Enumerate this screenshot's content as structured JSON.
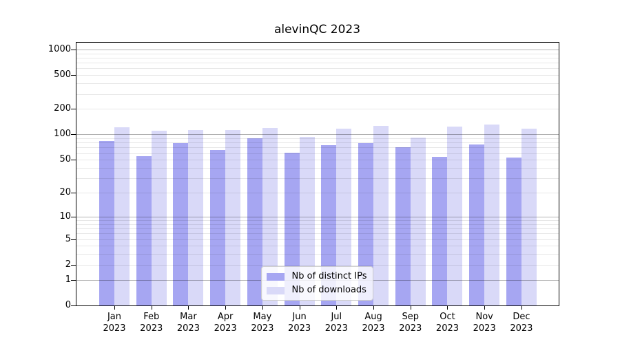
{
  "figure": {
    "background": "#ffffff"
  },
  "chart_data": {
    "type": "bar",
    "title": "alevinQC 2023",
    "categories": [
      "Jan 2023",
      "Feb 2023",
      "Mar 2023",
      "Apr 2023",
      "May 2023",
      "Jun 2023",
      "Jul 2023",
      "Aug 2023",
      "Sep 2023",
      "Oct 2023",
      "Nov 2023",
      "Dec 2023"
    ],
    "series": [
      {
        "name": "Nb of distinct IPs",
        "color": "#a6a6f2",
        "values": [
          83,
          55,
          79,
          65,
          90,
          61,
          74,
          79,
          70,
          54,
          76,
          53
        ]
      },
      {
        "name": "Nb of downloads",
        "color": "#d9d9f8",
        "values": [
          122,
          110,
          113,
          112,
          119,
          94,
          117,
          127,
          91,
          124,
          130,
          117
        ]
      }
    ],
    "xlabel": "",
    "ylabel": "",
    "y_scale": "log1p",
    "y_ticks": [
      0,
      1,
      2,
      5,
      10,
      20,
      50,
      100,
      200,
      500,
      1000
    ],
    "y_major_gridlines": [
      1,
      10,
      100,
      1000
    ],
    "y_minor_gridlines": [
      2,
      3,
      4,
      5,
      6,
      7,
      8,
      9,
      20,
      30,
      40,
      50,
      60,
      70,
      80,
      90,
      200,
      300,
      400,
      500,
      600,
      700,
      800,
      900
    ],
    "ylim": [
      0,
      1200
    ],
    "grid": true,
    "legend": {
      "position": "lower center"
    }
  },
  "colors": {
    "ips_bar": "#a6a6f2",
    "downloads_bar": "#d9d9f8",
    "major_grid": "#b2b2b2",
    "minor_grid": "#e7e7e7",
    "axis": "#000000",
    "legend_border": "#cccccc",
    "background": "#ffffff"
  }
}
